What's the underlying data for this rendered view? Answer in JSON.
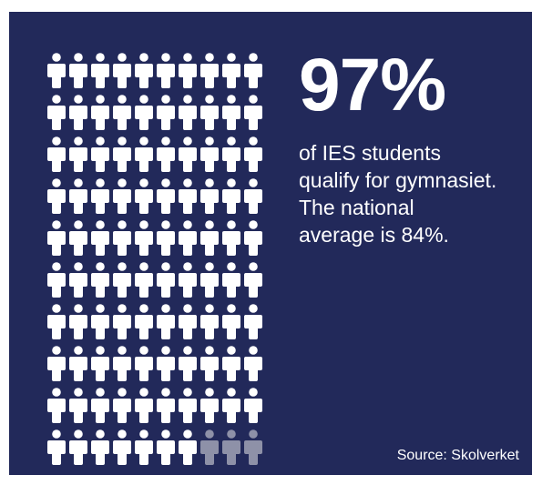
{
  "chart_data": {
    "type": "pictogram",
    "total": 100,
    "value": 97,
    "rows": 10,
    "columns": 10,
    "filled_color": "#ffffff",
    "unfilled_color": "#8e91a8",
    "icon": "person-icon"
  },
  "headline": "97%",
  "description": {
    "lines": [
      "of IES students",
      "qualify for gymnasiet.",
      "The national",
      "average is 84%."
    ]
  },
  "source": "Source: Skolverket",
  "colors": {
    "background": "#22295a",
    "text": "#ffffff"
  }
}
